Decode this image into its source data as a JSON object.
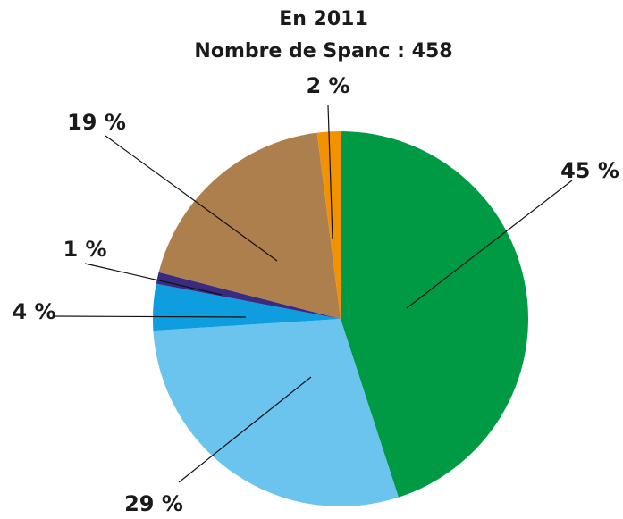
{
  "chart_data": {
    "type": "pie",
    "title": "En 2011",
    "subtitle": "Nombre de Spanc : 458",
    "categories": [
      null,
      null,
      null,
      null,
      null,
      null
    ],
    "values": [
      45,
      29,
      4,
      1,
      19,
      2
    ],
    "value_labels": [
      "45 %",
      "29 %",
      "4 %",
      "1 %",
      "19 %",
      "2 %"
    ],
    "colors": [
      "#009a44",
      "#6ac4ee",
      "#0e9ee0",
      "#3a2a80",
      "#ad7f4c",
      "#f39200"
    ]
  }
}
